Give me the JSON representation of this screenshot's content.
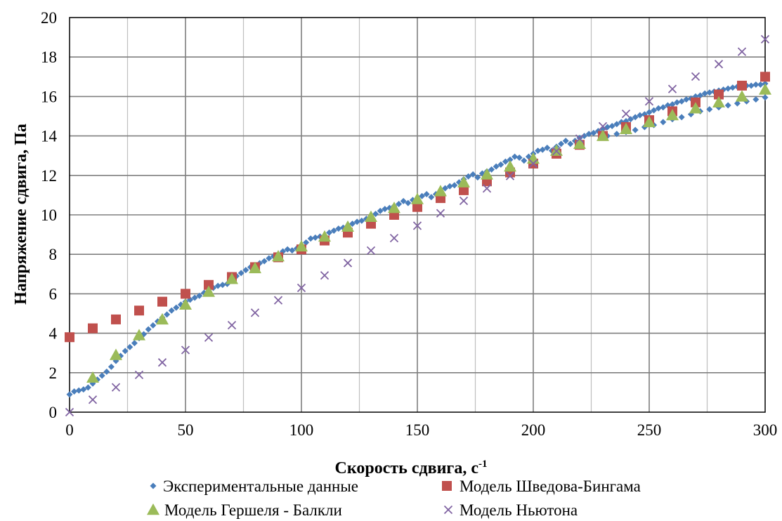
{
  "chart_data": {
    "type": "scatter",
    "title": "",
    "xlabel": "Скорость сдвига, с",
    "xlabel_sup": "-1",
    "ylabel": "Напряжение сдвига, Па",
    "xlim": [
      0,
      300
    ],
    "ylim": [
      0,
      20
    ],
    "x_major_step": 50,
    "x_minor_step": 25,
    "y_step": 2,
    "x_ticks": [
      "0",
      "50",
      "100",
      "150",
      "200",
      "250",
      "300"
    ],
    "y_ticks": [
      "0",
      "2",
      "4",
      "6",
      "8",
      "10",
      "12",
      "14",
      "16",
      "18",
      "20"
    ],
    "grid": true,
    "legend_position": "bottom",
    "series": [
      {
        "name": "Экспериментальные данные",
        "marker": "diamond",
        "color": "#4A7EBB",
        "points": [
          [
            0,
            0.9
          ],
          [
            2,
            1.05
          ],
          [
            4,
            1.1
          ],
          [
            6,
            1.15
          ],
          [
            8,
            1.25
          ],
          [
            10,
            1.45
          ],
          [
            12,
            1.65
          ],
          [
            14,
            1.85
          ],
          [
            16,
            2.05
          ],
          [
            18,
            2.3
          ],
          [
            20,
            2.6
          ],
          [
            22,
            2.85
          ],
          [
            24,
            3.1
          ],
          [
            26,
            3.3
          ],
          [
            28,
            3.5
          ],
          [
            30,
            3.75
          ],
          [
            32,
            3.95
          ],
          [
            34,
            4.2
          ],
          [
            36,
            4.4
          ],
          [
            38,
            4.6
          ],
          [
            40,
            4.8
          ],
          [
            42,
            4.95
          ],
          [
            44,
            5.15
          ],
          [
            46,
            5.3
          ],
          [
            48,
            5.45
          ],
          [
            50,
            5.6
          ],
          [
            52,
            5.7
          ],
          [
            54,
            5.8
          ],
          [
            56,
            5.9
          ],
          [
            58,
            6.05
          ],
          [
            60,
            6.15
          ],
          [
            62,
            6.3
          ],
          [
            64,
            6.4
          ],
          [
            66,
            6.45
          ],
          [
            68,
            6.5
          ],
          [
            70,
            6.7
          ],
          [
            72,
            6.9
          ],
          [
            74,
            7.05
          ],
          [
            76,
            7.2
          ],
          [
            78,
            7.35
          ],
          [
            80,
            7.45
          ],
          [
            82,
            7.55
          ],
          [
            84,
            7.65
          ],
          [
            86,
            7.8
          ],
          [
            88,
            7.9
          ],
          [
            90,
            8.0
          ],
          [
            92,
            8.15
          ],
          [
            94,
            8.25
          ],
          [
            96,
            8.2
          ],
          [
            98,
            8.3
          ],
          [
            100,
            8.45
          ],
          [
            102,
            8.6
          ],
          [
            104,
            8.8
          ],
          [
            106,
            8.85
          ],
          [
            108,
            8.9
          ],
          [
            110,
            8.95
          ],
          [
            112,
            9.1
          ],
          [
            114,
            9.2
          ],
          [
            116,
            9.3
          ],
          [
            118,
            9.35
          ],
          [
            120,
            9.45
          ],
          [
            122,
            9.55
          ],
          [
            124,
            9.65
          ],
          [
            126,
            9.7
          ],
          [
            128,
            9.8
          ],
          [
            130,
            9.9
          ],
          [
            132,
            10.05
          ],
          [
            134,
            10.2
          ],
          [
            136,
            10.3
          ],
          [
            138,
            10.35
          ],
          [
            140,
            10.45
          ],
          [
            142,
            10.55
          ],
          [
            144,
            10.7
          ],
          [
            146,
            10.6
          ],
          [
            148,
            10.75
          ],
          [
            150,
            10.8
          ],
          [
            152,
            10.95
          ],
          [
            154,
            11.05
          ],
          [
            156,
            10.9
          ],
          [
            158,
            11.05
          ],
          [
            160,
            11.2
          ],
          [
            162,
            11.35
          ],
          [
            164,
            11.45
          ],
          [
            166,
            11.5
          ],
          [
            168,
            11.65
          ],
          [
            170,
            11.8
          ],
          [
            172,
            11.95
          ],
          [
            174,
            12.05
          ],
          [
            176,
            11.9
          ],
          [
            178,
            12.1
          ],
          [
            180,
            12.2
          ],
          [
            182,
            12.3
          ],
          [
            184,
            12.45
          ],
          [
            186,
            12.55
          ],
          [
            188,
            12.7
          ],
          [
            190,
            12.8
          ],
          [
            192,
            12.95
          ],
          [
            194,
            12.9
          ],
          [
            196,
            12.75
          ],
          [
            198,
            12.95
          ],
          [
            200,
            13.1
          ],
          [
            202,
            13.25
          ],
          [
            204,
            13.3
          ],
          [
            206,
            13.4
          ],
          [
            208,
            13.25
          ],
          [
            210,
            13.45
          ],
          [
            212,
            13.6
          ],
          [
            214,
            13.75
          ],
          [
            216,
            13.6
          ],
          [
            218,
            13.75
          ],
          [
            220,
            13.9
          ],
          [
            222,
            14.0
          ],
          [
            224,
            14.1
          ],
          [
            226,
            14.15
          ],
          [
            228,
            14.25
          ],
          [
            230,
            14.35
          ],
          [
            232,
            14.45
          ],
          [
            234,
            14.5
          ],
          [
            236,
            14.6
          ],
          [
            238,
            14.7
          ],
          [
            240,
            14.75
          ],
          [
            242,
            14.85
          ],
          [
            244,
            14.95
          ],
          [
            246,
            15.05
          ],
          [
            248,
            15.1
          ],
          [
            250,
            15.2
          ],
          [
            252,
            15.3
          ],
          [
            254,
            15.4
          ],
          [
            256,
            15.45
          ],
          [
            258,
            15.55
          ],
          [
            260,
            15.6
          ],
          [
            262,
            15.7
          ],
          [
            264,
            15.75
          ],
          [
            266,
            15.85
          ],
          [
            268,
            15.9
          ],
          [
            270,
            16.0
          ],
          [
            272,
            16.05
          ],
          [
            274,
            16.15
          ],
          [
            276,
            16.2
          ],
          [
            278,
            16.25
          ],
          [
            280,
            16.3
          ],
          [
            282,
            16.35
          ],
          [
            284,
            16.4
          ],
          [
            286,
            16.45
          ],
          [
            288,
            16.5
          ],
          [
            290,
            16.5
          ],
          [
            292,
            16.55
          ],
          [
            294,
            16.55
          ],
          [
            296,
            16.6
          ],
          [
            298,
            16.6
          ],
          [
            300,
            16.65
          ],
          [
            232,
            14.0
          ],
          [
            236,
            14.1
          ],
          [
            240,
            14.2
          ],
          [
            244,
            14.3
          ],
          [
            248,
            14.45
          ],
          [
            252,
            14.55
          ],
          [
            256,
            14.7
          ],
          [
            260,
            14.85
          ],
          [
            264,
            14.95
          ],
          [
            268,
            15.1
          ],
          [
            272,
            15.25
          ],
          [
            276,
            15.35
          ],
          [
            280,
            15.45
          ],
          [
            284,
            15.55
          ],
          [
            288,
            15.65
          ],
          [
            292,
            15.75
          ],
          [
            296,
            15.85
          ],
          [
            300,
            15.95
          ]
        ]
      },
      {
        "name": "Модель Шведова-Бингама",
        "marker": "square",
        "color": "#C0504D",
        "points": [
          [
            0,
            3.8
          ],
          [
            10,
            4.25
          ],
          [
            20,
            4.7
          ],
          [
            30,
            5.15
          ],
          [
            40,
            5.6
          ],
          [
            50,
            6.0
          ],
          [
            60,
            6.45
          ],
          [
            70,
            6.85
          ],
          [
            80,
            7.35
          ],
          [
            90,
            7.85
          ],
          [
            100,
            8.25
          ],
          [
            110,
            8.7
          ],
          [
            120,
            9.1
          ],
          [
            130,
            9.55
          ],
          [
            140,
            10.0
          ],
          [
            150,
            10.4
          ],
          [
            160,
            10.85
          ],
          [
            170,
            11.25
          ],
          [
            180,
            11.7
          ],
          [
            190,
            12.15
          ],
          [
            200,
            12.6
          ],
          [
            210,
            13.1
          ],
          [
            220,
            13.55
          ],
          [
            230,
            14.0
          ],
          [
            240,
            14.45
          ],
          [
            250,
            14.8
          ],
          [
            260,
            15.25
          ],
          [
            270,
            15.7
          ],
          [
            280,
            16.1
          ],
          [
            290,
            16.55
          ],
          [
            300,
            17.0
          ]
        ]
      },
      {
        "name": "Модель Гершеля - Балкли",
        "marker": "triangle",
        "color": "#9BBB59",
        "points": [
          [
            10,
            1.75
          ],
          [
            20,
            2.9
          ],
          [
            30,
            3.9
          ],
          [
            40,
            4.7
          ],
          [
            50,
            5.45
          ],
          [
            60,
            6.1
          ],
          [
            70,
            6.75
          ],
          [
            80,
            7.3
          ],
          [
            90,
            7.9
          ],
          [
            100,
            8.4
          ],
          [
            110,
            8.9
          ],
          [
            120,
            9.4
          ],
          [
            130,
            9.9
          ],
          [
            140,
            10.35
          ],
          [
            150,
            10.8
          ],
          [
            160,
            11.2
          ],
          [
            170,
            11.65
          ],
          [
            180,
            12.05
          ],
          [
            190,
            12.45
          ],
          [
            200,
            12.85
          ],
          [
            210,
            13.25
          ],
          [
            220,
            13.6
          ],
          [
            230,
            14.0
          ],
          [
            240,
            14.35
          ],
          [
            250,
            14.7
          ],
          [
            260,
            15.05
          ],
          [
            270,
            15.4
          ],
          [
            280,
            15.7
          ],
          [
            290,
            16.0
          ],
          [
            300,
            16.35
          ]
        ]
      },
      {
        "name": "Модель Ньютона",
        "marker": "x",
        "color": "#8064A2",
        "points": [
          [
            0,
            0.0
          ],
          [
            10,
            0.63
          ],
          [
            20,
            1.26
          ],
          [
            30,
            1.89
          ],
          [
            40,
            2.52
          ],
          [
            50,
            3.15
          ],
          [
            60,
            3.78
          ],
          [
            70,
            4.41
          ],
          [
            80,
            5.04
          ],
          [
            90,
            5.67
          ],
          [
            100,
            6.3
          ],
          [
            110,
            6.93
          ],
          [
            120,
            7.56
          ],
          [
            130,
            8.19
          ],
          [
            140,
            8.82
          ],
          [
            150,
            9.45
          ],
          [
            160,
            10.08
          ],
          [
            170,
            10.71
          ],
          [
            180,
            11.34
          ],
          [
            190,
            11.97
          ],
          [
            200,
            12.6
          ],
          [
            210,
            13.23
          ],
          [
            220,
            13.86
          ],
          [
            230,
            14.49
          ],
          [
            240,
            15.12
          ],
          [
            250,
            15.75
          ],
          [
            260,
            16.38
          ],
          [
            270,
            17.01
          ],
          [
            280,
            17.64
          ],
          [
            290,
            18.27
          ],
          [
            300,
            18.9
          ]
        ]
      }
    ]
  }
}
